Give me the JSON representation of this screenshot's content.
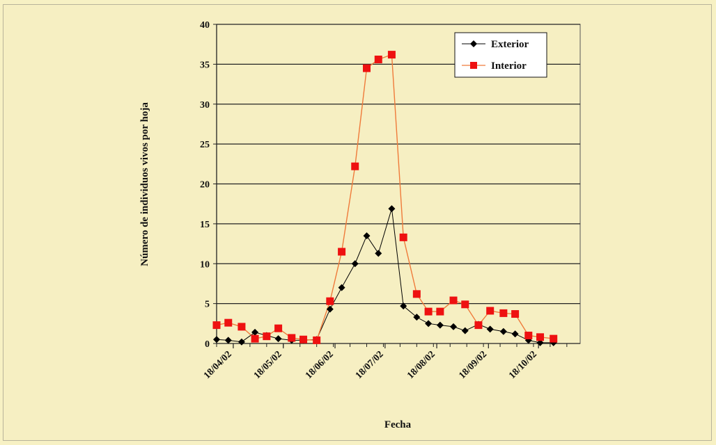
{
  "chart_data": {
    "type": "line",
    "xlabel": "Fecha",
    "ylabel": "Número de individuos vivos por hoja",
    "ylim": [
      0,
      40
    ],
    "yticks": [
      0,
      5,
      10,
      15,
      20,
      25,
      30,
      35,
      40
    ],
    "xlim": [
      "2002-04-08",
      "2002-11-12"
    ],
    "xticks": [
      {
        "date": "2002-04-18",
        "label": "18/04/02"
      },
      {
        "date": "2002-05-18",
        "label": "18/05/02"
      },
      {
        "date": "2002-06-18",
        "label": "18/06/02"
      },
      {
        "date": "2002-07-18",
        "label": "18/07/02"
      },
      {
        "date": "2002-08-18",
        "label": "18/08/02"
      },
      {
        "date": "2002-09-18",
        "label": "18/09/02"
      },
      {
        "date": "2002-10-18",
        "label": "18/10/02"
      }
    ],
    "grid": "horizontal",
    "legend_position": "top-right",
    "series": [
      {
        "name": "Exterior",
        "color": "#000000",
        "marker": "diamond",
        "line_color": "#000000",
        "points": [
          [
            "2002-04-08",
            0.5
          ],
          [
            "2002-04-15",
            0.4
          ],
          [
            "2002-04-23",
            0.2
          ],
          [
            "2002-05-01",
            1.4
          ],
          [
            "2002-05-08",
            1.0
          ],
          [
            "2002-05-15",
            0.6
          ],
          [
            "2002-05-23",
            0.4
          ],
          [
            "2002-05-30",
            0.4
          ],
          [
            "2002-06-07",
            0.5
          ],
          [
            "2002-06-15",
            4.3
          ],
          [
            "2002-06-22",
            7.0
          ],
          [
            "2002-06-30",
            10.0
          ],
          [
            "2002-07-07",
            13.5
          ],
          [
            "2002-07-14",
            11.3
          ],
          [
            "2002-07-22",
            16.9
          ],
          [
            "2002-07-29",
            4.7
          ],
          [
            "2002-08-06",
            3.3
          ],
          [
            "2002-08-13",
            2.5
          ],
          [
            "2002-08-20",
            2.3
          ],
          [
            "2002-08-28",
            2.1
          ],
          [
            "2002-09-04",
            1.6
          ],
          [
            "2002-09-12",
            2.4
          ],
          [
            "2002-09-19",
            1.8
          ],
          [
            "2002-09-27",
            1.5
          ],
          [
            "2002-10-04",
            1.2
          ],
          [
            "2002-10-12",
            0.4
          ],
          [
            "2002-10-19",
            0.1
          ],
          [
            "2002-10-27",
            0.1
          ]
        ]
      },
      {
        "name": "Interior",
        "color": "#ee1111",
        "marker": "square",
        "line_color": "#ef7a3a",
        "points": [
          [
            "2002-04-08",
            2.3
          ],
          [
            "2002-04-15",
            2.6
          ],
          [
            "2002-04-23",
            2.1
          ],
          [
            "2002-05-01",
            0.6
          ],
          [
            "2002-05-08",
            0.9
          ],
          [
            "2002-05-15",
            1.9
          ],
          [
            "2002-05-23",
            0.7
          ],
          [
            "2002-05-30",
            0.5
          ],
          [
            "2002-06-07",
            0.4
          ],
          [
            "2002-06-15",
            5.3
          ],
          [
            "2002-06-22",
            11.5
          ],
          [
            "2002-06-30",
            22.2
          ],
          [
            "2002-07-07",
            34.5
          ],
          [
            "2002-07-14",
            35.6
          ],
          [
            "2002-07-22",
            36.2
          ],
          [
            "2002-07-29",
            13.3
          ],
          [
            "2002-08-06",
            6.2
          ],
          [
            "2002-08-13",
            4.0
          ],
          [
            "2002-08-20",
            4.0
          ],
          [
            "2002-08-28",
            5.4
          ],
          [
            "2002-09-04",
            4.9
          ],
          [
            "2002-09-12",
            2.3
          ],
          [
            "2002-09-19",
            4.1
          ],
          [
            "2002-09-27",
            3.8
          ],
          [
            "2002-10-04",
            3.7
          ],
          [
            "2002-10-12",
            1.0
          ],
          [
            "2002-10-19",
            0.8
          ],
          [
            "2002-10-27",
            0.6
          ]
        ]
      }
    ]
  }
}
